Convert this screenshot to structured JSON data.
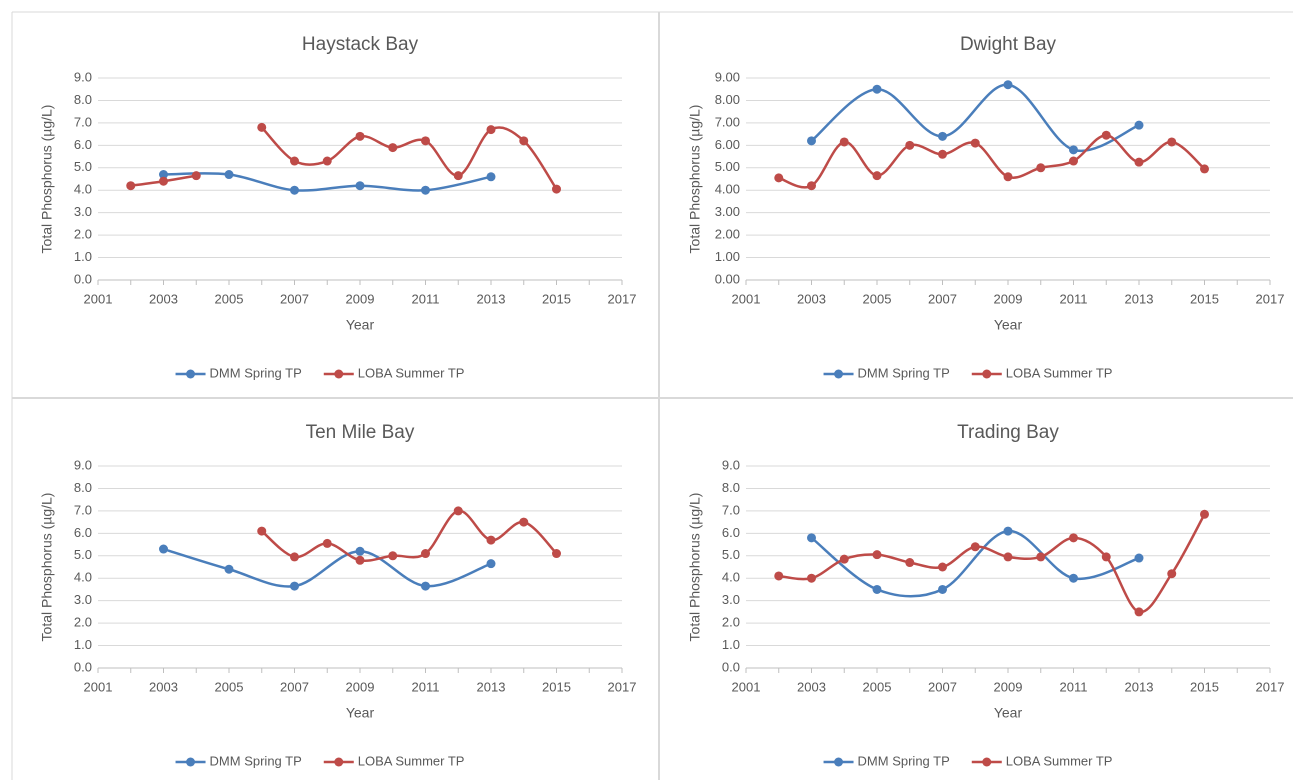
{
  "chart_data": [
    {
      "type": "line",
      "title": "Haystack Bay",
      "x_label": "Year",
      "y_label": "Total Phosphorus (µg/L)",
      "xlim": [
        2001,
        2017
      ],
      "xticks": [
        2001,
        2003,
        2005,
        2007,
        2009,
        2011,
        2013,
        2015,
        2017
      ],
      "ylim": [
        0,
        9
      ],
      "yticks": [
        {
          "value": 0,
          "label": "0.0"
        },
        {
          "value": 1,
          "label": "1.0"
        },
        {
          "value": 2,
          "label": "2.0"
        },
        {
          "value": 3,
          "label": "3.0"
        },
        {
          "value": 4,
          "label": "4.0"
        },
        {
          "value": 5,
          "label": "5.0"
        },
        {
          "value": 6,
          "label": "6.0"
        },
        {
          "value": 7,
          "label": "7.0"
        },
        {
          "value": 8,
          "label": "8.0"
        },
        {
          "value": 9,
          "label": "9.0"
        }
      ],
      "grid": true,
      "legend": "bottom",
      "series": [
        {
          "name": "DMM Spring TP",
          "color": "#4a7ebb",
          "x": [
            2003,
            2005,
            2007,
            2009,
            2011,
            2013
          ],
          "values": [
            4.7,
            4.7,
            4.0,
            4.2,
            4.0,
            4.6
          ]
        },
        {
          "name": "LOBA Summer TP",
          "color": "#be4b48",
          "x": [
            2002,
            2003,
            2004,
            2005,
            2006,
            2007,
            2008,
            2009,
            2010,
            2011,
            2012,
            2013,
            2014,
            2015
          ],
          "values": [
            4.2,
            4.4,
            4.65,
            null,
            6.8,
            5.3,
            5.3,
            6.4,
            5.9,
            6.2,
            4.65,
            6.7,
            6.2,
            4.05
          ]
        }
      ]
    },
    {
      "type": "line",
      "title": "Dwight Bay",
      "x_label": "Year",
      "y_label": "Total Phosphorus (µg/L)",
      "xlim": [
        2001,
        2017
      ],
      "xticks": [
        2001,
        2003,
        2005,
        2007,
        2009,
        2011,
        2013,
        2015,
        2017
      ],
      "ylim": [
        0,
        9
      ],
      "yticks": [
        {
          "value": 0,
          "label": "0.00"
        },
        {
          "value": 1,
          "label": "1.00"
        },
        {
          "value": 2,
          "label": "2.00"
        },
        {
          "value": 3,
          "label": "3.00"
        },
        {
          "value": 4,
          "label": "4.00"
        },
        {
          "value": 5,
          "label": "5.00"
        },
        {
          "value": 6,
          "label": "6.00"
        },
        {
          "value": 7,
          "label": "7.00"
        },
        {
          "value": 8,
          "label": "8.00"
        },
        {
          "value": 9,
          "label": "9.00"
        }
      ],
      "grid": true,
      "legend": "bottom",
      "series": [
        {
          "name": "DMM Spring TP",
          "color": "#4a7ebb",
          "x": [
            2003,
            2005,
            2007,
            2009,
            2011,
            2013
          ],
          "values": [
            6.2,
            8.5,
            6.4,
            8.7,
            5.8,
            6.9
          ]
        },
        {
          "name": "LOBA Summer TP",
          "color": "#be4b48",
          "x": [
            2002,
            2003,
            2004,
            2005,
            2006,
            2007,
            2008,
            2009,
            2010,
            2011,
            2012,
            2013,
            2014,
            2015
          ],
          "values": [
            4.55,
            4.2,
            6.15,
            4.65,
            6.0,
            5.6,
            6.1,
            4.6,
            5.0,
            5.3,
            6.45,
            5.25,
            6.15,
            4.95
          ]
        }
      ]
    },
    {
      "type": "line",
      "title": "Ten Mile Bay",
      "x_label": "Year",
      "y_label": "Total Phosphorus (µg/L)",
      "xlim": [
        2001,
        2017
      ],
      "xticks": [
        2001,
        2003,
        2005,
        2007,
        2009,
        2011,
        2013,
        2015,
        2017
      ],
      "ylim": [
        0,
        9
      ],
      "yticks": [
        {
          "value": 0,
          "label": "0.0"
        },
        {
          "value": 1,
          "label": "1.0"
        },
        {
          "value": 2,
          "label": "2.0"
        },
        {
          "value": 3,
          "label": "3.0"
        },
        {
          "value": 4,
          "label": "4.0"
        },
        {
          "value": 5,
          "label": "5.0"
        },
        {
          "value": 6,
          "label": "6.0"
        },
        {
          "value": 7,
          "label": "7.0"
        },
        {
          "value": 8,
          "label": "8.0"
        },
        {
          "value": 9,
          "label": "9.0"
        }
      ],
      "grid": true,
      "legend": "bottom",
      "series": [
        {
          "name": "DMM Spring TP",
          "color": "#4a7ebb",
          "x": [
            2003,
            2005,
            2007,
            2009,
            2011,
            2013
          ],
          "values": [
            5.3,
            4.4,
            3.65,
            5.2,
            3.65,
            4.65
          ]
        },
        {
          "name": "LOBA Summer TP",
          "color": "#be4b48",
          "x": [
            2006,
            2007,
            2008,
            2009,
            2010,
            2011,
            2012,
            2013,
            2014,
            2015
          ],
          "values": [
            6.1,
            4.95,
            5.55,
            4.8,
            5.0,
            5.1,
            7.0,
            5.7,
            6.5,
            5.1
          ]
        }
      ]
    },
    {
      "type": "line",
      "title": "Trading Bay",
      "x_label": "Year",
      "y_label": "Total Phosphorus (µg/L)",
      "xlim": [
        2001,
        2017
      ],
      "xticks": [
        2001,
        2003,
        2005,
        2007,
        2009,
        2011,
        2013,
        2015,
        2017
      ],
      "ylim": [
        0,
        9
      ],
      "yticks": [
        {
          "value": 0,
          "label": "0.0"
        },
        {
          "value": 1,
          "label": "1.0"
        },
        {
          "value": 2,
          "label": "2.0"
        },
        {
          "value": 3,
          "label": "3.0"
        },
        {
          "value": 4,
          "label": "4.0"
        },
        {
          "value": 5,
          "label": "5.0"
        },
        {
          "value": 6,
          "label": "6.0"
        },
        {
          "value": 7,
          "label": "7.0"
        },
        {
          "value": 8,
          "label": "8.0"
        },
        {
          "value": 9,
          "label": "9.0"
        }
      ],
      "grid": true,
      "legend": "bottom",
      "series": [
        {
          "name": "DMM Spring TP",
          "color": "#4a7ebb",
          "x": [
            2003,
            2005,
            2007,
            2009,
            2011,
            2013
          ],
          "values": [
            5.8,
            3.5,
            3.5,
            6.1,
            4.0,
            4.9
          ]
        },
        {
          "name": "LOBA Summer TP",
          "color": "#be4b48",
          "x": [
            2002,
            2003,
            2004,
            2005,
            2006,
            2007,
            2008,
            2009,
            2010,
            2011,
            2012,
            2013,
            2014,
            2015
          ],
          "values": [
            4.1,
            4.0,
            4.85,
            5.05,
            4.7,
            4.5,
            5.4,
            4.95,
            4.95,
            5.8,
            4.95,
            2.5,
            4.2,
            6.85
          ]
        }
      ]
    }
  ]
}
